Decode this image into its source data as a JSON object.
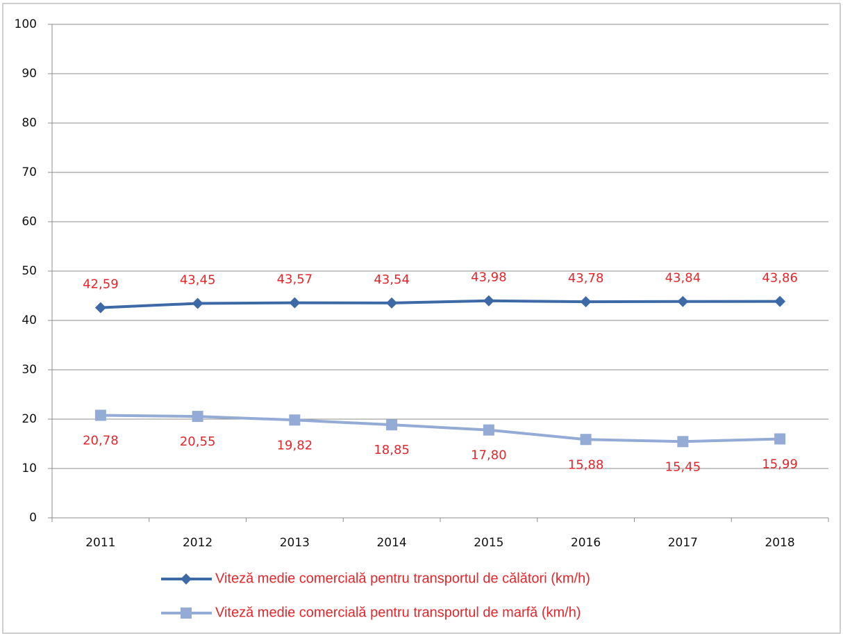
{
  "chart_data": {
    "type": "line",
    "categories": [
      "2011",
      "2012",
      "2013",
      "2014",
      "2015",
      "2016",
      "2017",
      "2018"
    ],
    "series": [
      {
        "name": "Viteză medie comercială pentru transportul de călători (km/h)",
        "color": "#3d6aa6",
        "marker": "diamond",
        "values": [
          42.59,
          43.45,
          43.57,
          43.54,
          43.98,
          43.78,
          43.84,
          43.86
        ],
        "value_labels": [
          "42,59",
          "43,45",
          "43,57",
          "43,54",
          "43,98",
          "43,78",
          "43,84",
          "43,86"
        ]
      },
      {
        "name": "Viteză medie comercială pentru transportul de marfă (km/h)",
        "color": "#93abd5",
        "marker": "square",
        "values": [
          20.78,
          20.55,
          19.82,
          18.85,
          17.8,
          15.88,
          15.45,
          15.99
        ],
        "value_labels": [
          "20,78",
          "20,55",
          "19,82",
          "18,85",
          "17,80",
          "15,88",
          "15,45",
          "15,99"
        ]
      }
    ],
    "ylim": [
      0,
      100
    ],
    "yticks": [
      0,
      10,
      20,
      30,
      40,
      50,
      60,
      70,
      80,
      90,
      100
    ],
    "grid": true,
    "label_color": "#e3262b",
    "legend": "bottom"
  }
}
